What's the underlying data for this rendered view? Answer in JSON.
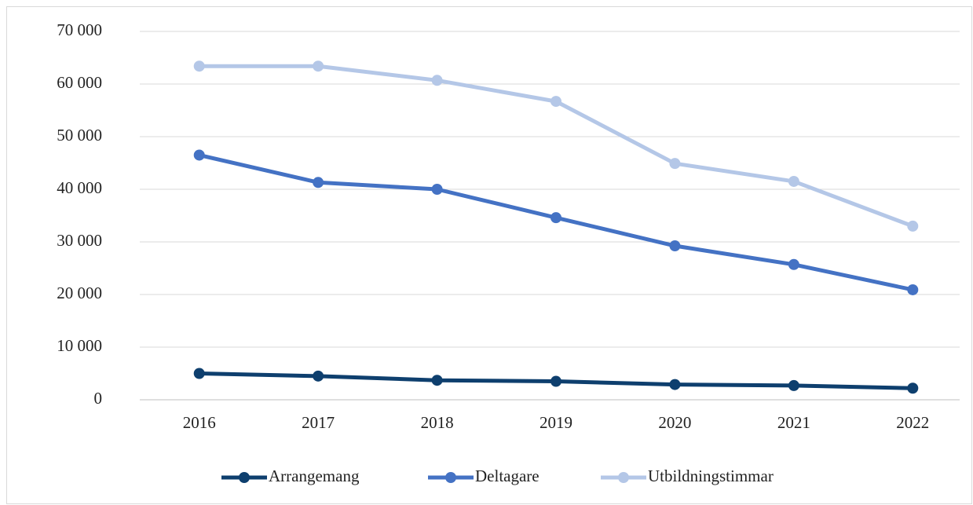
{
  "chart_data": {
    "type": "line",
    "categories": [
      "2016",
      "2017",
      "2018",
      "2019",
      "2020",
      "2021",
      "2022"
    ],
    "series": [
      {
        "name": "Arrangemang",
        "color": "#0e3f6e",
        "values": [
          5000,
          4500,
          3700,
          3500,
          2900,
          2700,
          2200
        ]
      },
      {
        "name": "Deltagare",
        "color": "#4472c4",
        "values": [
          46500,
          41300,
          40000,
          34600,
          29250,
          25700,
          20900
        ]
      },
      {
        "name": "Utbildningstimmar",
        "color": "#b4c7e7",
        "values": [
          63400,
          63400,
          60700,
          56700,
          44900,
          41500,
          33000
        ]
      }
    ],
    "ylim": [
      0,
      70000
    ],
    "yticks": [
      0,
      {
        "value": 10000,
        "label": "10 000"
      },
      {
        "value": 20000,
        "label": "20 000"
      },
      {
        "value": 30000,
        "label": "30 000"
      },
      {
        "value": 40000,
        "label": "40 000"
      },
      {
        "value": 50000,
        "label": "50 000"
      },
      {
        "value": 60000,
        "label": "60 000"
      },
      {
        "value": 70000,
        "label": "70 000"
      }
    ],
    "grid": true,
    "legend": "bottom"
  }
}
